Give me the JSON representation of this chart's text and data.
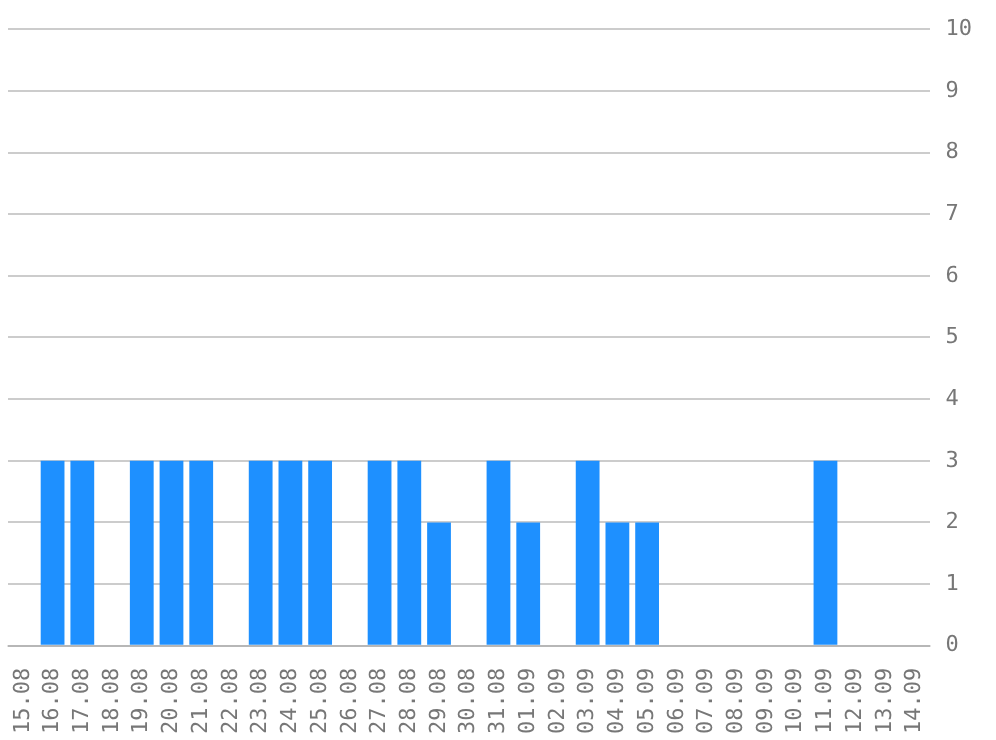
{
  "chart_data": {
    "type": "bar",
    "categories": [
      "15.08",
      "16.08",
      "17.08",
      "18.08",
      "19.08",
      "20.08",
      "21.08",
      "22.08",
      "23.08",
      "24.08",
      "25.08",
      "26.08",
      "27.08",
      "28.08",
      "29.08",
      "30.08",
      "31.08",
      "01.09",
      "02.09",
      "03.09",
      "04.09",
      "05.09",
      "06.09",
      "07.09",
      "08.09",
      "09.09",
      "10.09",
      "11.09",
      "12.09",
      "13.09",
      "14.09"
    ],
    "values": [
      0,
      3,
      3,
      0,
      3,
      3,
      3,
      0,
      3,
      3,
      3,
      0,
      3,
      3,
      2,
      0,
      3,
      2,
      0,
      3,
      2,
      2,
      0,
      0,
      0,
      0,
      0,
      3,
      0,
      0,
      0
    ],
    "color": "#1e90ff",
    "ylim": [
      0,
      10
    ],
    "yticks": [
      0,
      1,
      2,
      3,
      4,
      5,
      6,
      7,
      8,
      9,
      10
    ],
    "grid": "y",
    "legend": false
  }
}
